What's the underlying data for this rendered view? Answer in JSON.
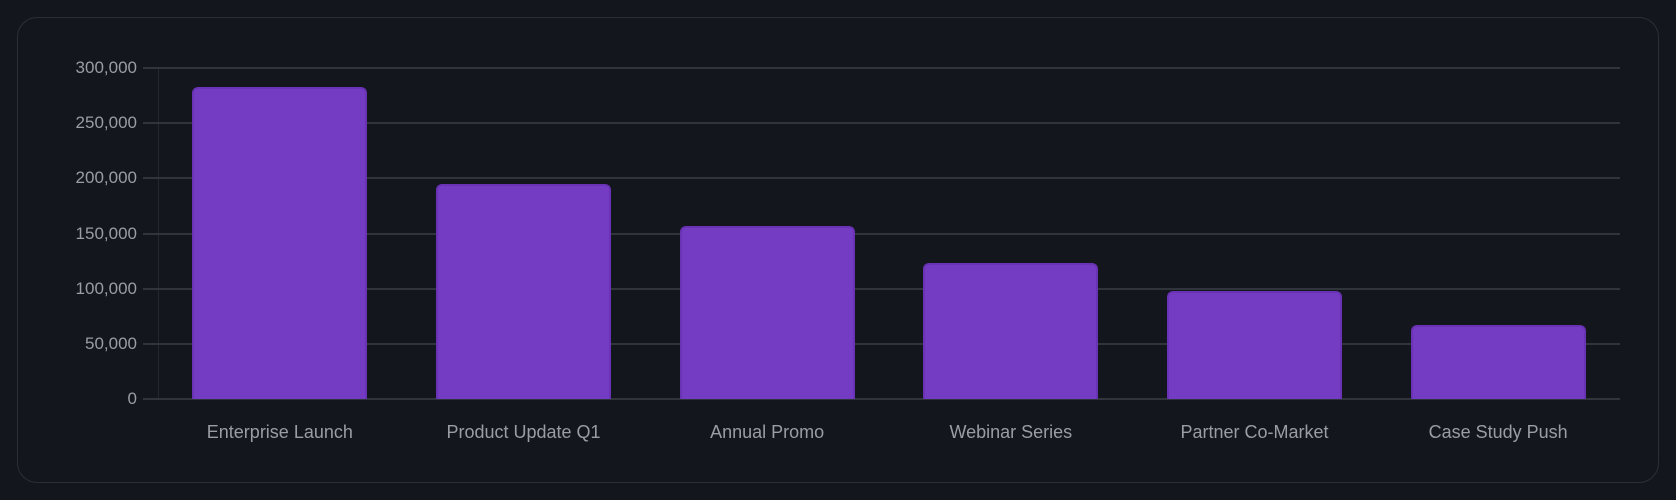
{
  "chart_data": {
    "type": "bar",
    "title": "",
    "xlabel": "",
    "ylabel": "",
    "categories": [
      "Enterprise Launch",
      "Product Update Q1",
      "Annual Promo",
      "Webinar Series",
      "Partner Co-Market",
      "Case Study Push"
    ],
    "values": [
      283000,
      195000,
      157000,
      123000,
      98000,
      67000
    ],
    "ylim": [
      0,
      300000
    ],
    "yticks": [
      0,
      50000,
      100000,
      150000,
      200000,
      250000,
      300000
    ],
    "ytick_labels": [
      "0",
      "50,000",
      "100,000",
      "150,000",
      "200,000",
      "250,000",
      "300,000"
    ],
    "grid": true,
    "legend": null,
    "colors": {
      "bar": "#743bc3",
      "bar_border": "#6a32b5",
      "grid": "#30343b",
      "text": "#9a9da3",
      "background": "#13171d"
    }
  }
}
